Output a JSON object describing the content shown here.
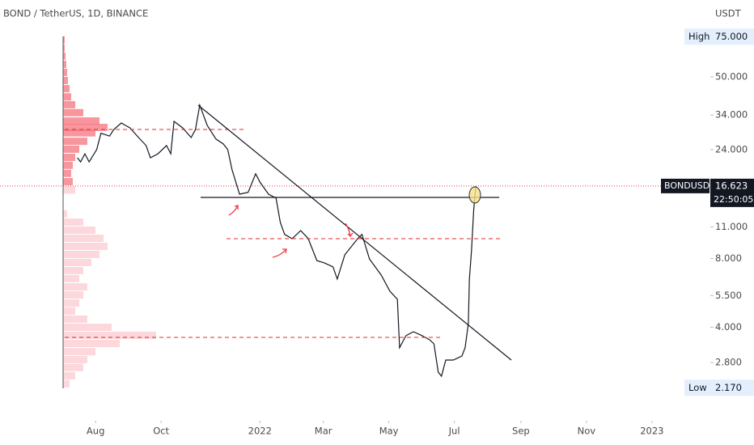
{
  "chart_data": {
    "type": "line",
    "title": "BOND / TetherUS, 1D, BINANCE",
    "currency": "USDT",
    "log_scale": true,
    "xlim": [
      "2021-05-04",
      "2023-02-07"
    ],
    "ylim": [
      1.556,
      108.6
    ],
    "yticks": [
      {
        "value": 50,
        "label": "50.000"
      },
      {
        "value": 34,
        "label": "34.000"
      },
      {
        "value": 24,
        "label": "24.000"
      },
      {
        "value": 11,
        "label": "11.000"
      },
      {
        "value": 8,
        "label": "8.000"
      },
      {
        "value": 5.5,
        "label": "5.500"
      },
      {
        "value": 4,
        "label": "4.000"
      },
      {
        "value": 2.8,
        "label": "2.800"
      }
    ],
    "xticks": [
      {
        "value": "2021-08-01",
        "label": "Aug"
      },
      {
        "value": "2021-10-01",
        "label": "Oct"
      },
      {
        "value": "2022-01-01",
        "label": "2022"
      },
      {
        "value": "2022-03-01",
        "label": "Mar"
      },
      {
        "value": "2022-05-01",
        "label": "May"
      },
      {
        "value": "2022-07-01",
        "label": "Jul"
      },
      {
        "value": "2022-09-01",
        "label": "Sep"
      },
      {
        "value": "2022-11-01",
        "label": "Nov"
      },
      {
        "value": "2023-01-01",
        "label": "2023"
      }
    ],
    "high": {
      "name": "High",
      "value": 75,
      "label": "75.000"
    },
    "low": {
      "name": "Low",
      "value": 2.17,
      "label": "2.170"
    },
    "last_price": {
      "symbol": "BONDUSDT",
      "value": 16.623,
      "countdown": "22:50:05",
      "color": "#f23645"
    },
    "series": [
      {
        "color": "#131722",
        "x": [
          "2021-07-15",
          "2021-07-18",
          "2021-07-22",
          "2021-07-26",
          "2021-08-02",
          "2021-08-06",
          "2021-08-14",
          "2021-08-18",
          "2021-08-25",
          "2021-08-29",
          "2021-09-02",
          "2021-09-10",
          "2021-09-17",
          "2021-09-21",
          "2021-09-28",
          "2021-10-06",
          "2021-10-10",
          "2021-10-13",
          "2021-10-21",
          "2021-10-29",
          "2021-11-02",
          "2021-11-06",
          "2021-11-13",
          "2021-11-21",
          "2021-11-28",
          "2021-12-02",
          "2021-12-06",
          "2021-12-13",
          "2021-12-21",
          "2021-12-28",
          "2022-01-01",
          "2022-01-09",
          "2022-01-16",
          "2022-01-20",
          "2022-01-24",
          "2022-01-31",
          "2022-02-08",
          "2022-02-15",
          "2022-02-23",
          "2022-03-02",
          "2022-03-10",
          "2022-03-14",
          "2022-03-21",
          "2022-04-02",
          "2022-04-06",
          "2022-04-13",
          "2022-04-24",
          "2022-05-02",
          "2022-05-09",
          "2022-05-11",
          "2022-05-17",
          "2022-05-24",
          "2022-06-01",
          "2022-06-08",
          "2022-06-12",
          "2022-06-16",
          "2022-06-19",
          "2022-06-23",
          "2022-06-30",
          "2022-07-08",
          "2022-07-11",
          "2022-07-14",
          "2022-07-15",
          "2022-07-17",
          "2022-07-19",
          "2022-07-21"
        ],
        "values": [
          22.1,
          21.2,
          23.0,
          21.2,
          24.0,
          28.3,
          27.5,
          29.4,
          31.4,
          30.6,
          29.9,
          27.1,
          25.0,
          22.1,
          23.0,
          25.0,
          23.0,
          31.9,
          29.9,
          27.1,
          29.4,
          37.6,
          30.6,
          26.7,
          25.4,
          24.0,
          19.6,
          15.3,
          15.6,
          18.8,
          17.3,
          15.3,
          14.7,
          11.5,
          10.2,
          9.77,
          10.6,
          9.77,
          7.83,
          7.65,
          7.35,
          6.5,
          8.3,
          9.77,
          10.2,
          7.96,
          6.76,
          5.75,
          5.3,
          3.25,
          3.67,
          3.82,
          3.67,
          3.52,
          3.38,
          2.54,
          2.44,
          2.87,
          2.87,
          2.99,
          3.25,
          4.15,
          6.5,
          8.65,
          13.0,
          16.6
        ]
      }
    ],
    "volume_profile": {
      "upper_color": "#f5737d",
      "lower_color": "#fcd3d7",
      "prices": [
        72.3,
        66.6,
        61.4,
        56.5,
        52.1,
        48.0,
        44.2,
        40.7,
        37.6,
        34.7,
        31.9,
        29.9,
        28.3,
        26.0,
        24.0,
        22.1,
        20.4,
        18.8,
        17.3,
        15.9,
        12.5,
        11.5,
        10.6,
        9.77,
        9.0,
        8.3,
        7.65,
        7.05,
        6.5,
        5.98,
        5.52,
        5.08,
        4.69,
        4.32,
        3.98,
        3.67,
        3.38,
        3.11,
        2.87,
        2.65,
        2.44,
        2.25
      ],
      "volumes": [
        2,
        2,
        3,
        4,
        5,
        6,
        8,
        10,
        15,
        25,
        45,
        55,
        40,
        30,
        20,
        15,
        12,
        10,
        12,
        15,
        5,
        25,
        40,
        50,
        55,
        45,
        35,
        25,
        20,
        30,
        25,
        20,
        15,
        30,
        60,
        115,
        70,
        40,
        30,
        25,
        15,
        8
      ]
    }
  }
}
